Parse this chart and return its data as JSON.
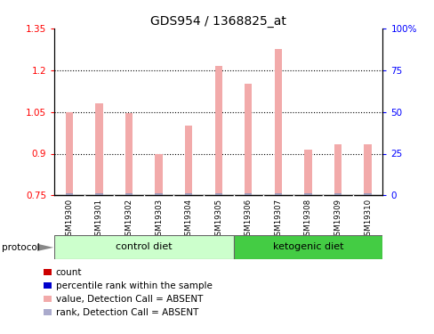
{
  "title": "GDS954 / 1368825_at",
  "samples": [
    "GSM19300",
    "GSM19301",
    "GSM19302",
    "GSM19303",
    "GSM19304",
    "GSM19305",
    "GSM19306",
    "GSM19307",
    "GSM19308",
    "GSM19309",
    "GSM19310"
  ],
  "bar_values": [
    1.05,
    1.08,
    1.045,
    0.9,
    1.0,
    1.215,
    1.15,
    1.275,
    0.915,
    0.935,
    0.935
  ],
  "ylim_left": [
    0.75,
    1.35
  ],
  "ylim_right": [
    0,
    100
  ],
  "yticks_left": [
    0.75,
    0.9,
    1.05,
    1.2,
    1.35
  ],
  "yticks_right": [
    0,
    25,
    50,
    75,
    100
  ],
  "ytick_labels_left": [
    "0.75",
    "0.9",
    "1.05",
    "1.2",
    "1.35"
  ],
  "ytick_labels_right": [
    "0",
    "25",
    "50",
    "75",
    "100%"
  ],
  "bar_color": "#f2aaaa",
  "rank_color": "#9999bb",
  "grid_color": "#000000",
  "control_group_count": 6,
  "ketogenic_group_count": 5,
  "control_label": "control diet",
  "ketogenic_label": "ketogenic diet",
  "control_color": "#ccffcc",
  "ketogenic_color": "#44cc44",
  "legend_items": [
    {
      "color": "#cc0000",
      "label": "count"
    },
    {
      "color": "#0000cc",
      "label": "percentile rank within the sample"
    },
    {
      "color": "#f2aaaa",
      "label": "value, Detection Call = ABSENT"
    },
    {
      "color": "#aaaacc",
      "label": "rank, Detection Call = ABSENT"
    }
  ],
  "protocol_label": "protocol",
  "bar_width": 0.25,
  "background_color": "#ffffff",
  "plot_bg_color": "#ffffff",
  "xlabels_bg_color": "#cccccc",
  "title_fontsize": 10
}
